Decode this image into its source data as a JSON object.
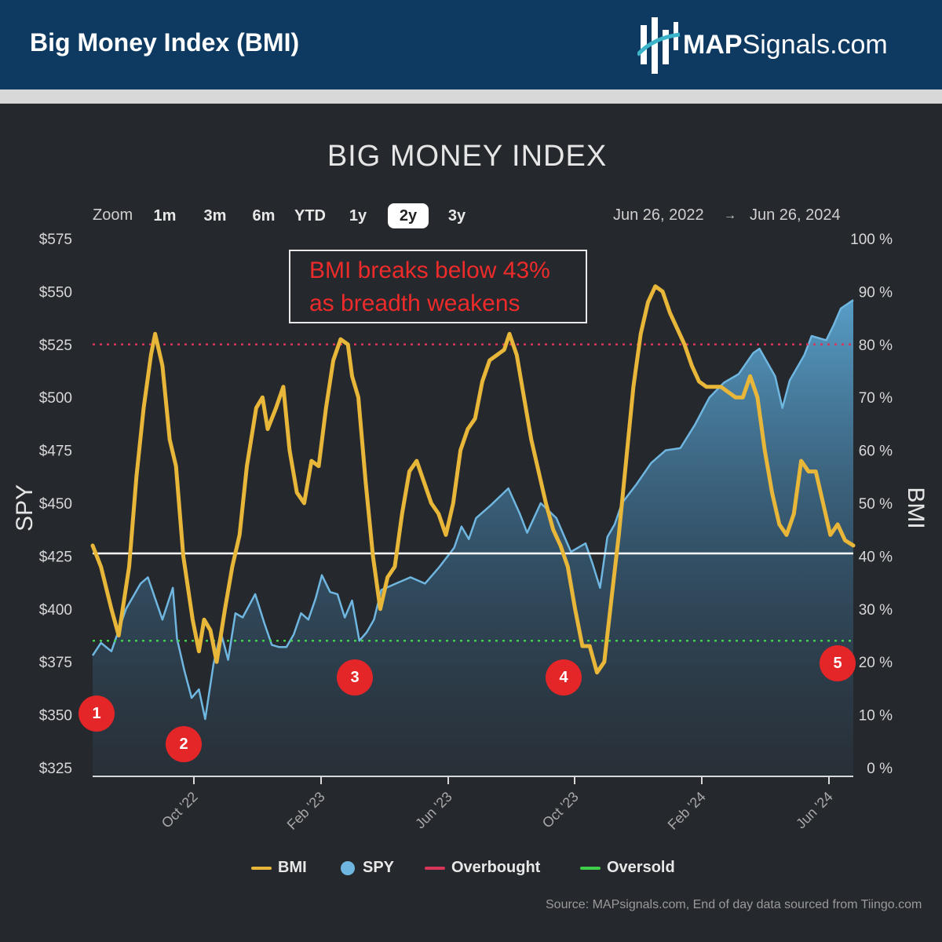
{
  "header": {
    "title": "Big Money Index (BMI)",
    "logo_bold": "MAP",
    "logo_rest": "Signals.com"
  },
  "chart_title": "BIG MONEY INDEX",
  "zoom": {
    "label": "Zoom",
    "buttons": [
      "1m",
      "3m",
      "6m",
      "YTD",
      "1y",
      "2y",
      "3y"
    ],
    "active": "2y"
  },
  "range": {
    "from": "Jun 26, 2022",
    "arrow": "→",
    "to": "Jun 26, 2024"
  },
  "annotation": {
    "line1": "BMI breaks below 43%",
    "line2": "as breadth weakens"
  },
  "markers": [
    "1",
    "2",
    "3",
    "4",
    "5"
  ],
  "legend": [
    {
      "name": "BMI",
      "color": "#e8b73a",
      "kind": "line"
    },
    {
      "name": "SPY",
      "color": "#6fb6e0",
      "kind": "dot"
    },
    {
      "name": "Overbought",
      "color": "#d9345a",
      "kind": "line"
    },
    {
      "name": "Oversold",
      "color": "#3fcf4a",
      "kind": "line"
    }
  ],
  "source": "Source: MAPsignals.com, End of day data sourced from Tiingo.com",
  "colors": {
    "bmi": "#e8b73a",
    "spy_line": "#6fb6e0",
    "overbought": "#d9345a",
    "oversold": "#3fcf4a",
    "threshold": "#ffffff"
  },
  "chart_data": {
    "type": "line",
    "title": "BIG MONEY INDEX",
    "xlabel": "",
    "ylabel_left": "SPY",
    "ylabel_right": "BMI",
    "x_ticks": [
      "Oct '22",
      "Feb '23",
      "Jun '23",
      "Oct '23",
      "Feb '24",
      "Jun '24"
    ],
    "y_left_ticks": [
      "$575",
      "$550",
      "$525",
      "$500",
      "$475",
      "$450",
      "$425",
      "$400",
      "$375",
      "$350",
      "$325"
    ],
    "y_right_ticks": [
      "100 %",
      "90 %",
      "80 %",
      "70 %",
      "60 %",
      "50 %",
      "40 %",
      "30 %",
      "20 %",
      "10 %",
      "0 %"
    ],
    "y_left_range": [
      325,
      575
    ],
    "y_right_range": [
      0,
      100
    ],
    "x_range": [
      "2022-06-27",
      "2024-06-26"
    ],
    "overbought_level": 80,
    "oversold_level": 24,
    "threshold_level": 40.5,
    "series": [
      {
        "name": "BMI",
        "axis": "right",
        "points": [
          [
            "2022-06-27",
            42
          ],
          [
            "2022-07-05",
            38
          ],
          [
            "2022-07-15",
            30
          ],
          [
            "2022-07-22",
            25
          ],
          [
            "2022-08-01",
            38
          ],
          [
            "2022-08-08",
            55
          ],
          [
            "2022-08-15",
            68
          ],
          [
            "2022-08-22",
            78
          ],
          [
            "2022-08-26",
            82
          ],
          [
            "2022-09-02",
            76
          ],
          [
            "2022-09-09",
            62
          ],
          [
            "2022-09-15",
            57
          ],
          [
            "2022-09-22",
            40
          ],
          [
            "2022-10-01",
            28
          ],
          [
            "2022-10-07",
            22
          ],
          [
            "2022-10-12",
            28
          ],
          [
            "2022-10-18",
            26
          ],
          [
            "2022-10-24",
            20
          ],
          [
            "2022-11-01",
            30
          ],
          [
            "2022-11-08",
            38
          ],
          [
            "2022-11-15",
            44
          ],
          [
            "2022-11-22",
            57
          ],
          [
            "2022-12-01",
            68
          ],
          [
            "2022-12-07",
            70
          ],
          [
            "2022-12-12",
            64
          ],
          [
            "2022-12-20",
            68
          ],
          [
            "2022-12-27",
            72
          ],
          [
            "2023-01-02",
            60
          ],
          [
            "2023-01-09",
            52
          ],
          [
            "2023-01-16",
            50
          ],
          [
            "2023-01-23",
            58
          ],
          [
            "2023-01-30",
            57
          ],
          [
            "2023-02-06",
            68
          ],
          [
            "2023-02-13",
            77
          ],
          [
            "2023-02-20",
            81
          ],
          [
            "2023-02-27",
            80
          ],
          [
            "2023-03-03",
            74
          ],
          [
            "2023-03-09",
            70
          ],
          [
            "2023-03-16",
            54
          ],
          [
            "2023-03-23",
            40
          ],
          [
            "2023-03-30",
            30
          ],
          [
            "2023-04-06",
            36
          ],
          [
            "2023-04-13",
            38
          ],
          [
            "2023-04-20",
            48
          ],
          [
            "2023-04-27",
            56
          ],
          [
            "2023-05-04",
            58
          ],
          [
            "2023-05-11",
            54
          ],
          [
            "2023-05-18",
            50
          ],
          [
            "2023-05-25",
            48
          ],
          [
            "2023-06-01",
            44
          ],
          [
            "2023-06-08",
            50
          ],
          [
            "2023-06-15",
            60
          ],
          [
            "2023-06-22",
            64
          ],
          [
            "2023-06-29",
            66
          ],
          [
            "2023-07-06",
            73
          ],
          [
            "2023-07-13",
            77
          ],
          [
            "2023-07-20",
            78
          ],
          [
            "2023-07-27",
            79
          ],
          [
            "2023-08-01",
            82
          ],
          [
            "2023-08-08",
            78
          ],
          [
            "2023-08-15",
            70
          ],
          [
            "2023-08-22",
            62
          ],
          [
            "2023-08-29",
            56
          ],
          [
            "2023-09-05",
            50
          ],
          [
            "2023-09-12",
            45
          ],
          [
            "2023-09-19",
            42
          ],
          [
            "2023-09-26",
            38
          ],
          [
            "2023-10-03",
            30
          ],
          [
            "2023-10-10",
            23
          ],
          [
            "2023-10-17",
            23
          ],
          [
            "2023-10-24",
            18
          ],
          [
            "2023-10-31",
            20
          ],
          [
            "2023-11-07",
            32
          ],
          [
            "2023-11-14",
            44
          ],
          [
            "2023-11-21",
            58
          ],
          [
            "2023-11-28",
            72
          ],
          [
            "2023-12-05",
            82
          ],
          [
            "2023-12-12",
            88
          ],
          [
            "2023-12-19",
            91
          ],
          [
            "2023-12-26",
            90
          ],
          [
            "2024-01-02",
            86
          ],
          [
            "2024-01-09",
            83
          ],
          [
            "2024-01-16",
            80
          ],
          [
            "2024-01-23",
            76
          ],
          [
            "2024-01-30",
            73
          ],
          [
            "2024-02-06",
            72
          ],
          [
            "2024-02-13",
            72
          ],
          [
            "2024-02-20",
            72
          ],
          [
            "2024-02-27",
            71
          ],
          [
            "2024-03-05",
            70
          ],
          [
            "2024-03-12",
            70
          ],
          [
            "2024-03-19",
            74
          ],
          [
            "2024-03-26",
            70
          ],
          [
            "2024-04-02",
            60
          ],
          [
            "2024-04-09",
            52
          ],
          [
            "2024-04-16",
            46
          ],
          [
            "2024-04-23",
            44
          ],
          [
            "2024-04-30",
            48
          ],
          [
            "2024-05-07",
            58
          ],
          [
            "2024-05-14",
            56
          ],
          [
            "2024-05-21",
            56
          ],
          [
            "2024-05-28",
            50
          ],
          [
            "2024-06-04",
            44
          ],
          [
            "2024-06-11",
            46
          ],
          [
            "2024-06-18",
            43
          ],
          [
            "2024-06-26",
            42
          ]
        ]
      },
      {
        "name": "SPY",
        "axis": "left",
        "points": [
          [
            "2022-06-27",
            378
          ],
          [
            "2022-07-05",
            384
          ],
          [
            "2022-07-15",
            380
          ],
          [
            "2022-07-29",
            400
          ],
          [
            "2022-08-12",
            412
          ],
          [
            "2022-08-19",
            415
          ],
          [
            "2022-08-26",
            405
          ],
          [
            "2022-09-02",
            395
          ],
          [
            "2022-09-12",
            410
          ],
          [
            "2022-09-16",
            386
          ],
          [
            "2022-09-23",
            371
          ],
          [
            "2022-09-30",
            358
          ],
          [
            "2022-10-07",
            362
          ],
          [
            "2022-10-13",
            348
          ],
          [
            "2022-10-21",
            374
          ],
          [
            "2022-10-28",
            389
          ],
          [
            "2022-11-04",
            376
          ],
          [
            "2022-11-11",
            398
          ],
          [
            "2022-11-18",
            396
          ],
          [
            "2022-11-30",
            407
          ],
          [
            "2022-12-09",
            393
          ],
          [
            "2022-12-16",
            383
          ],
          [
            "2022-12-23",
            382
          ],
          [
            "2022-12-30",
            382
          ],
          [
            "2023-01-06",
            388
          ],
          [
            "2023-01-13",
            398
          ],
          [
            "2023-01-20",
            395
          ],
          [
            "2023-01-27",
            405
          ],
          [
            "2023-02-02",
            416
          ],
          [
            "2023-02-10",
            408
          ],
          [
            "2023-02-17",
            407
          ],
          [
            "2023-02-24",
            396
          ],
          [
            "2023-03-03",
            404
          ],
          [
            "2023-03-10",
            385
          ],
          [
            "2023-03-17",
            389
          ],
          [
            "2023-03-24",
            395
          ],
          [
            "2023-03-31",
            409
          ],
          [
            "2023-04-14",
            412
          ],
          [
            "2023-04-28",
            415
          ],
          [
            "2023-05-12",
            412
          ],
          [
            "2023-05-26",
            420
          ],
          [
            "2023-06-09",
            429
          ],
          [
            "2023-06-16",
            439
          ],
          [
            "2023-06-23",
            433
          ],
          [
            "2023-06-30",
            443
          ],
          [
            "2023-07-14",
            449
          ],
          [
            "2023-07-31",
            457
          ],
          [
            "2023-08-11",
            445
          ],
          [
            "2023-08-18",
            436
          ],
          [
            "2023-08-31",
            450
          ],
          [
            "2023-09-15",
            443
          ],
          [
            "2023-09-29",
            427
          ],
          [
            "2023-10-06",
            429
          ],
          [
            "2023-10-13",
            431
          ],
          [
            "2023-10-20",
            421
          ],
          [
            "2023-10-27",
            410
          ],
          [
            "2023-11-03",
            434
          ],
          [
            "2023-11-10",
            440
          ],
          [
            "2023-11-17",
            450
          ],
          [
            "2023-12-01",
            459
          ],
          [
            "2023-12-15",
            469
          ],
          [
            "2023-12-29",
            475
          ],
          [
            "2024-01-12",
            476
          ],
          [
            "2024-01-26",
            487
          ],
          [
            "2024-02-09",
            500
          ],
          [
            "2024-02-23",
            507
          ],
          [
            "2024-03-08",
            511
          ],
          [
            "2024-03-22",
            521
          ],
          [
            "2024-03-28",
            523
          ],
          [
            "2024-04-12",
            510
          ],
          [
            "2024-04-19",
            495
          ],
          [
            "2024-04-26",
            508
          ],
          [
            "2024-05-10",
            520
          ],
          [
            "2024-05-17",
            529
          ],
          [
            "2024-05-31",
            527
          ],
          [
            "2024-06-07",
            534
          ],
          [
            "2024-06-14",
            542
          ],
          [
            "2024-06-26",
            546
          ]
        ]
      }
    ],
    "legend": [
      "BMI",
      "SPY",
      "Overbought",
      "Oversold"
    ],
    "legend_position": "bottom",
    "grid": false
  }
}
